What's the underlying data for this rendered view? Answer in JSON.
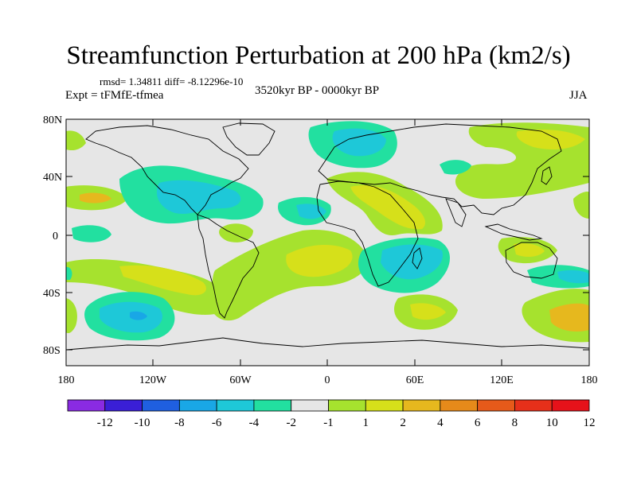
{
  "header": {
    "title": "Streamfunction Perturbation at 200 hPa (km2/s)",
    "rmsd_diff": "rmsd= 1.34811 diff= -8.12296e-10",
    "experiment": "Expt = tFMfE-tfmea",
    "period": "3520kyr BP - 0000kyr BP",
    "season": "JJA"
  },
  "axes": {
    "lat_labels": [
      "80N",
      "40N",
      "0",
      "40S",
      "80S"
    ],
    "lon_labels": [
      "180",
      "120W",
      "60W",
      "0",
      "60E",
      "120E",
      "180"
    ]
  },
  "colorbar": {
    "labels": [
      "-12",
      "-10",
      "-8",
      "-6",
      "-4",
      "-2",
      "-1",
      "1",
      "2",
      "4",
      "6",
      "8",
      "10",
      "12"
    ],
    "colors": [
      "#8a2be2",
      "#3a1fd6",
      "#1f5fe0",
      "#19a7e6",
      "#1ec8d8",
      "#22e0a0",
      "#e6e6e6",
      "#a6e22e",
      "#d6e01a",
      "#e6b81e",
      "#e68a1a",
      "#e65a1a",
      "#e6301a",
      "#e6121a"
    ]
  },
  "map_features": {
    "land_outline_color": "#000000",
    "background_color": "#e6e6e6"
  }
}
